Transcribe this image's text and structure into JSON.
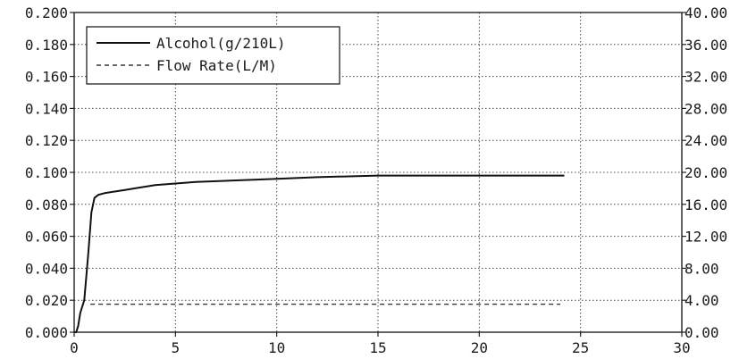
{
  "chart_data": {
    "type": "line",
    "x_ticks": [
      "0",
      "5",
      "10",
      "15",
      "20",
      "25",
      "30"
    ],
    "y_left_ticks": [
      "0.000",
      "0.020",
      "0.040",
      "0.060",
      "0.080",
      "0.100",
      "0.120",
      "0.140",
      "0.160",
      "0.180",
      "0.200"
    ],
    "y_right_ticks": [
      "0.00",
      "4.00",
      "8.00",
      "12.00",
      "16.00",
      "20.00",
      "24.00",
      "28.00",
      "32.00",
      "36.00",
      "40.00"
    ],
    "xlim": [
      0,
      30
    ],
    "ylim_left": [
      0,
      0.2
    ],
    "ylim_right": [
      0,
      40
    ],
    "grid": true,
    "legend_position": "top-left",
    "series": [
      {
        "name": "Alcohol(g/210L)",
        "axis": "left",
        "style": "solid",
        "color": "#111111",
        "x": [
          0.0,
          0.1,
          0.2,
          0.3,
          0.5,
          0.7,
          0.85,
          1.0,
          1.2,
          1.5,
          2.0,
          2.5,
          3.0,
          4.0,
          5.0,
          6.0,
          8.0,
          10.0,
          12.0,
          15.0,
          18.0,
          20.0,
          22.0,
          24.2
        ],
        "y": [
          0.0,
          0.0,
          0.004,
          0.012,
          0.02,
          0.05,
          0.075,
          0.084,
          0.086,
          0.087,
          0.088,
          0.089,
          0.09,
          0.092,
          0.093,
          0.094,
          0.095,
          0.096,
          0.097,
          0.098,
          0.098,
          0.098,
          0.098,
          0.098
        ]
      },
      {
        "name": "Flow Rate(L/M)",
        "axis": "right",
        "style": "dashed",
        "color": "#111111",
        "x": [
          0.8,
          5,
          10,
          15,
          20,
          24.0
        ],
        "y": [
          3.5,
          3.5,
          3.5,
          3.5,
          3.5,
          3.5
        ]
      }
    ]
  }
}
